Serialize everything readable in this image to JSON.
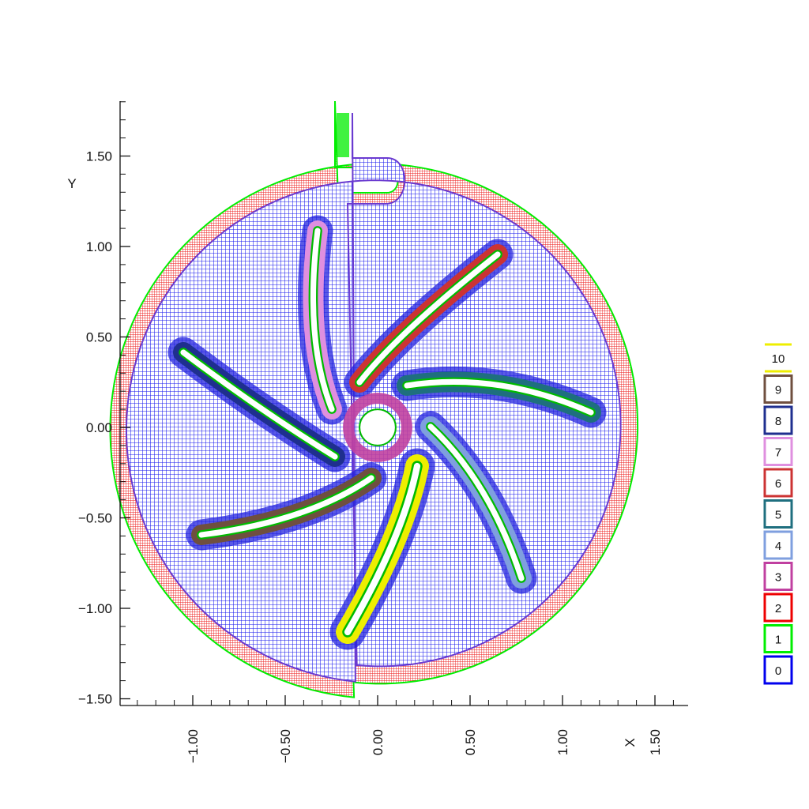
{
  "chart_data": {
    "type": "mesh-overlay",
    "xlabel": "X",
    "ylabel": "Y",
    "x_ticks": [
      "−1.00",
      "−0.50",
      "0.00",
      "0.50",
      "1.00",
      "1.50"
    ],
    "y_ticks": [
      "1.50",
      "1.00",
      "0.50",
      "0.00",
      "−0.50",
      "−1.00",
      "−1.50"
    ],
    "x_tick_values": [
      -1.0,
      -0.5,
      0.0,
      0.5,
      1.0,
      1.5
    ],
    "y_tick_values": [
      1.5,
      1.0,
      0.5,
      0.0,
      -0.5,
      -1.0,
      -1.5
    ],
    "xlim": [
      -1.4,
      1.7
    ],
    "ylim": [
      -1.53,
      1.8
    ],
    "casing": {
      "center": [
        0.0,
        0.0
      ],
      "radius_start": 1.35,
      "radius_end": 1.55,
      "outlet_width": 0.2
    },
    "hub": {
      "center": [
        0.0,
        0.0
      ],
      "radius": 0.1
    },
    "grids": [
      {
        "id": "0",
        "role": "background",
        "color": "#0000ee"
      },
      {
        "id": "1",
        "role": "boundary",
        "color": "#00ee00"
      },
      {
        "id": "2",
        "role": "casing",
        "color": "#ee0000"
      },
      {
        "id": "3",
        "role": "hub",
        "color": "#c040a0"
      },
      {
        "id": "4",
        "role": "blade",
        "color": "#7f9fdf",
        "blade_angle_deg": -54
      },
      {
        "id": "5",
        "role": "blade",
        "color": "#1f6f7f",
        "blade_angle_deg": 18
      },
      {
        "id": "6",
        "role": "blade",
        "color": "#cc3333",
        "blade_angle_deg": 90
      },
      {
        "id": "7",
        "role": "blade",
        "color": "#df8fdf",
        "blade_angle_deg": 162
      },
      {
        "id": "8",
        "role": "blade",
        "color": "#1f2f8f",
        "blade_angle_deg": 234
      },
      {
        "id": "9",
        "role": "blade",
        "color": "#6f4f3f",
        "blade_angle_deg": 198
      },
      {
        "id": "10",
        "role": "blade",
        "color": "#eeee00",
        "blade_angle_deg": 270
      }
    ]
  },
  "legend": [
    "10",
    "9",
    "8",
    "7",
    "6",
    "5",
    "4",
    "3",
    "2",
    "1",
    "0"
  ]
}
